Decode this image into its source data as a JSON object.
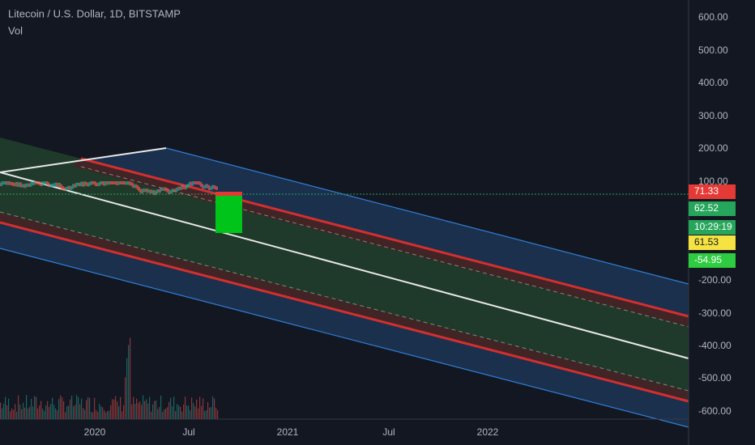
{
  "header": {
    "title": "Litecoin / U.S. Dollar, 1D, BITSTAMP",
    "indicator": "Vol"
  },
  "price_axis": [
    "600.00",
    "500.00",
    "400.00",
    "300.00",
    "200.00",
    "100.00",
    "-200.00",
    "-300.00",
    "-400.00",
    "-500.00",
    "-600.00"
  ],
  "price_tags": [
    {
      "label": "71.33",
      "color": "#e53935"
    },
    {
      "label": "62.52",
      "color": "#26a65b"
    },
    {
      "label": "10:29:19",
      "color": "#26a65b"
    },
    {
      "label": "61.53",
      "color": "#f5e342"
    },
    {
      "label": "-54.95",
      "color": "#2ecc40"
    }
  ],
  "time_axis": [
    "2020",
    "Jul",
    "2021",
    "Jul",
    "2022"
  ]
}
